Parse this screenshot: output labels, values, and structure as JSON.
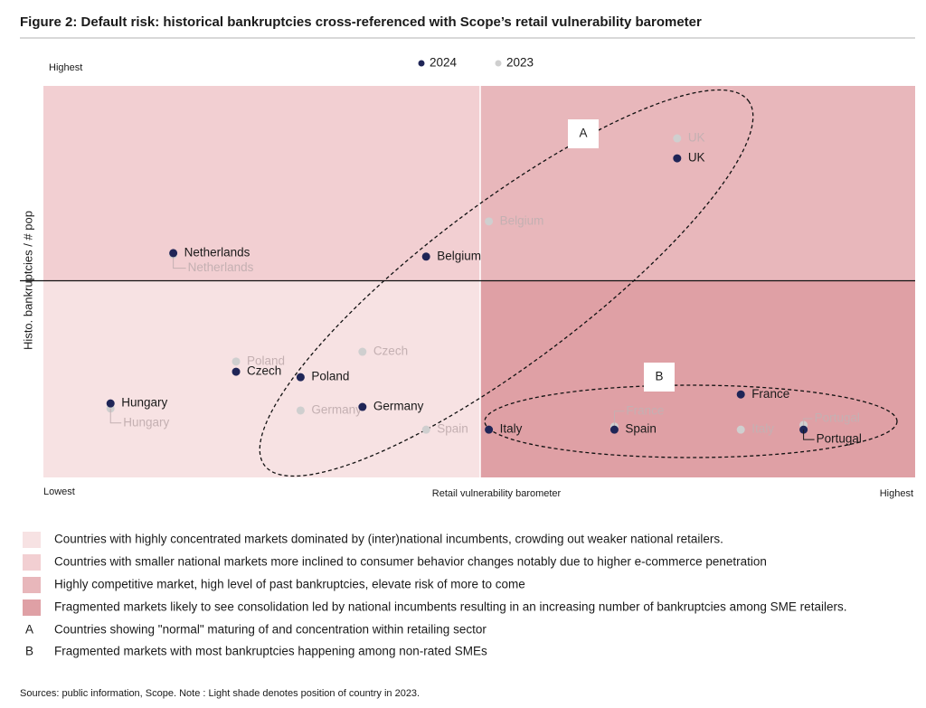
{
  "chart_data": {
    "type": "scatter",
    "title": "Figure 2: Default risk: historical bankruptcies cross-referenced with Scope’s retail vulnerability barometer",
    "x_label": "Retail vulnerability barometer",
    "y_label": "Histo. bankruptcies / # pop",
    "xlim": [
      0,
      100
    ],
    "ylim": [
      0,
      100
    ],
    "xticks": [
      {
        "value": 0,
        "label": "Lowest"
      },
      {
        "value": 100,
        "label": "Highest"
      }
    ],
    "yticks": [
      {
        "value": 100,
        "label": "Highest"
      }
    ],
    "series": [
      {
        "name": "2024",
        "color": "#1f2557",
        "labels": [
          "UK",
          "Netherlands",
          "Belgium",
          "Czech",
          "Poland",
          "Hungary",
          "Germany",
          "Italy",
          "Spain",
          "France",
          "Portugal"
        ],
        "x": [
          72.7,
          14.9,
          43.9,
          22.1,
          29.5,
          7.7,
          36.6,
          51.1,
          65.5,
          80.0,
          87.2
        ],
        "values": [
          81.5,
          57.3,
          56.4,
          27.0,
          25.6,
          18.9,
          18.0,
          12.2,
          12.2,
          21.2,
          12.2
        ]
      },
      {
        "name": "2023",
        "color": "#cfcfcf",
        "labels": [
          "UK",
          "Belgium",
          "Netherlands",
          "Czech",
          "Poland",
          "Germany",
          "Hungary",
          "Spain",
          "France",
          "Italy",
          "Portugal"
        ],
        "x": [
          72.7,
          51.1,
          14.9,
          36.6,
          22.1,
          29.5,
          7.7,
          43.9,
          65.5,
          80.0,
          87.2
        ],
        "values": [
          86.6,
          65.4,
          56.9,
          32.1,
          29.6,
          17.1,
          17.6,
          12.2,
          13.0,
          12.2,
          13.4
        ]
      }
    ],
    "shading": [
      {
        "color": "#f7e2e3",
        "label": "Countries with highly concentrated markets dominated by (inter)national incumbents, crowding out weaker national retailers."
      },
      {
        "color": "#f2cfd2",
        "label": "Countries with smaller national markets more inclined to consumer behavior changes notably due to higher e-commerce penetration"
      },
      {
        "color": "#e8b7bb",
        "label": "Highly competitive market, high level of past bankruptcies, elevate risk of more to come"
      },
      {
        "color": "#dfa0a5",
        "label": "Fragmented markets likely to see consolidation led by national incumbents resulting in an increasing number of bankruptcies among SME retailers."
      }
    ],
    "groups": [
      {
        "letter": "A",
        "label": "Countries showing \"normal\" maturing of and concentration within retailing sector"
      },
      {
        "letter": "B",
        "label": "Fragmented markets with most bankruptcies happening among non-rated SMEs"
      }
    ],
    "source": "Sources: public information, Scope. Note : Light shade denotes position of country in 2023."
  }
}
